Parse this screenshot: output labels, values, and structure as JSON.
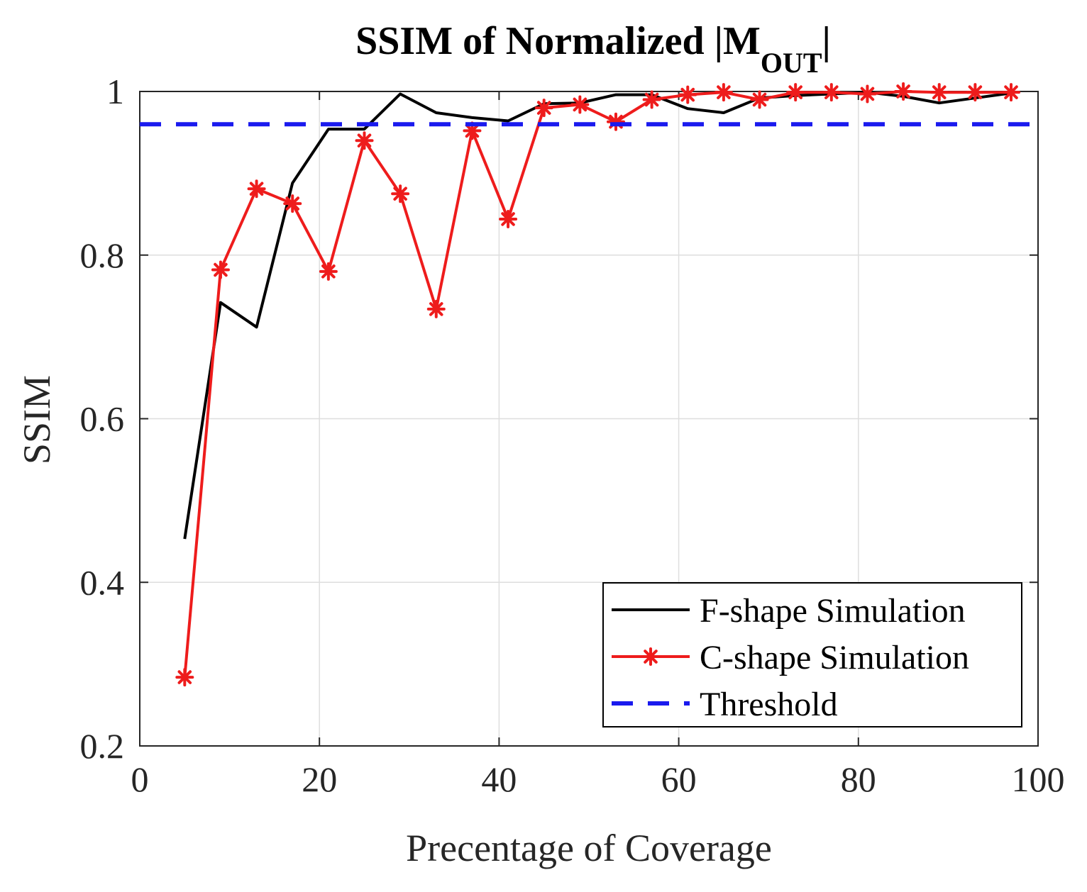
{
  "chart_data": {
    "type": "line",
    "title_prefix": "SSIM of Normalized |M",
    "title_subscript": "OUT",
    "title_suffix": "|",
    "xlabel": "Precentage of Coverage",
    "ylabel": "SSIM",
    "xlim": [
      0,
      100
    ],
    "ylim": [
      0.2,
      1
    ],
    "xticks": [
      0,
      20,
      40,
      60,
      80,
      100
    ],
    "xtick_labels": [
      "0",
      "20",
      "40",
      "60",
      "80",
      "100"
    ],
    "yticks": [
      0.2,
      0.4,
      0.6,
      0.8,
      1
    ],
    "ytick_labels": [
      "0.2",
      "0.4",
      "0.6",
      "0.8",
      "1"
    ],
    "grid": true,
    "legend_position": "bottom-right",
    "series": [
      {
        "name": "F-shape Simulation",
        "color": "#000000",
        "style": "solid",
        "marker": "none",
        "x": [
          5,
          9,
          13,
          17,
          21,
          25,
          29,
          33,
          37,
          41,
          45,
          49,
          53,
          57,
          61,
          65,
          69,
          73,
          77,
          81,
          85,
          89,
          93,
          97
        ],
        "y": [
          0.453,
          0.742,
          0.712,
          0.888,
          0.954,
          0.954,
          0.997,
          0.974,
          0.968,
          0.964,
          0.985,
          0.986,
          0.996,
          0.996,
          0.979,
          0.974,
          0.992,
          0.995,
          0.997,
          0.999,
          0.994,
          0.986,
          0.992,
          0.998
        ]
      },
      {
        "name": "C-shape Simulation",
        "color": "#ee1c1c",
        "style": "solid",
        "marker": "asterisk",
        "x": [
          5,
          9,
          13,
          17,
          21,
          25,
          29,
          33,
          37,
          41,
          45,
          49,
          53,
          57,
          61,
          65,
          69,
          73,
          77,
          81,
          85,
          89,
          93,
          97
        ],
        "y": [
          0.284,
          0.782,
          0.881,
          0.863,
          0.78,
          0.94,
          0.875,
          0.734,
          0.952,
          0.844,
          0.98,
          0.984,
          0.963,
          0.99,
          0.996,
          0.999,
          0.99,
          0.999,
          0.999,
          0.997,
          1.0,
          0.999,
          0.999,
          0.999
        ]
      },
      {
        "name": "Threshold",
        "color": "#1a1aee",
        "style": "dashed",
        "marker": "none",
        "x": [
          0,
          100
        ],
        "y": [
          0.96,
          0.96
        ]
      }
    ]
  }
}
